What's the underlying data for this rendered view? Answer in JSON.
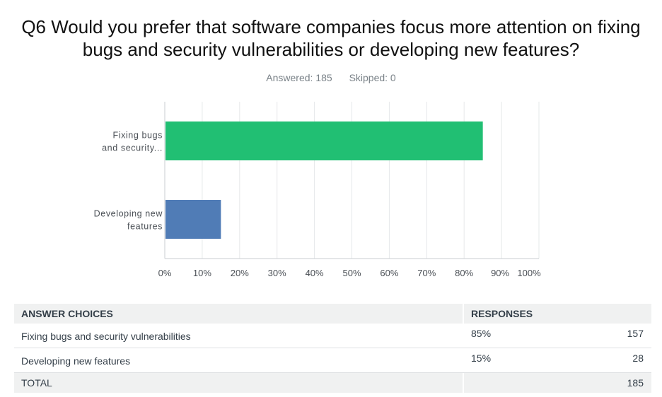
{
  "question": {
    "title": "Q6 Would you prefer that software companies focus more attention on fixing bugs and security vulnerabilities or developing new features?",
    "answered": "Answered: 185",
    "skipped": "Skipped: 0"
  },
  "colors": {
    "bar_primary": "#21bf73",
    "bar_secondary": "#507cb6",
    "grid": "#e6e8ea",
    "axis": "#c8ccd0"
  },
  "chart_data": {
    "type": "bar",
    "orientation": "horizontal",
    "categories": [
      "Fixing bugs and security...",
      "Developing new features"
    ],
    "category_labels": [
      [
        "Fixing bugs",
        "and security..."
      ],
      [
        "Developing new",
        "features"
      ]
    ],
    "values": [
      85,
      15
    ],
    "xlim": [
      0,
      100
    ],
    "x_ticks": [
      "0%",
      "10%",
      "20%",
      "30%",
      "40%",
      "50%",
      "60%",
      "70%",
      "80%",
      "90%",
      "100%"
    ],
    "grid": true
  },
  "table": {
    "headers": {
      "choice": "ANSWER CHOICES",
      "responses": "RESPONSES"
    },
    "rows": [
      {
        "choice": "Fixing bugs and security vulnerabilities",
        "percent": "85%",
        "count": "157"
      },
      {
        "choice": "Developing new features",
        "percent": "15%",
        "count": "28"
      }
    ],
    "total": {
      "label": "TOTAL",
      "count": "185"
    }
  }
}
